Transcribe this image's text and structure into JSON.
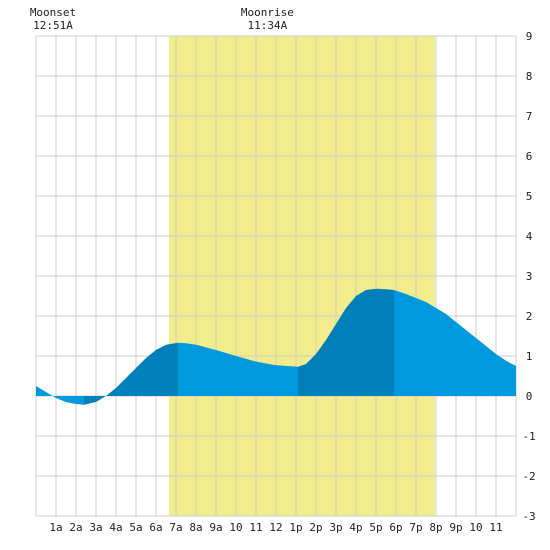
{
  "chart_data": {
    "type": "area",
    "title": "",
    "xlabel": "",
    "ylabel": "",
    "xlim": [
      0,
      24
    ],
    "ylim": [
      -3,
      9
    ],
    "grid": true,
    "x_tick_labels": [
      "1a",
      "2a",
      "3a",
      "4a",
      "5a",
      "6a",
      "7a",
      "8a",
      "9a",
      "10",
      "11",
      "12",
      "1p",
      "2p",
      "3p",
      "4p",
      "5p",
      "6p",
      "7p",
      "8p",
      "9p",
      "10",
      "11"
    ],
    "y_tick_labels": [
      "9",
      "8",
      "7",
      "6",
      "5",
      "4",
      "3",
      "2",
      "1",
      "0",
      "-1",
      "-2",
      "-3"
    ],
    "daylight": {
      "start": 6.65,
      "end": 19.95
    },
    "moon_events": [
      {
        "label": "Moonset",
        "time": "12:51A",
        "hour": 0.85
      },
      {
        "label": "Moonrise",
        "time": "11:34A",
        "hour": 11.57
      }
    ],
    "tide_extremes_hours": [
      2.4,
      7.1,
      13.1,
      17.9
    ],
    "series": [
      {
        "x": [
          0,
          0.5,
          1,
          1.5,
          2,
          2.4,
          3,
          3.5,
          4,
          4.5,
          5,
          5.5,
          6,
          6.5,
          7.1,
          7.5,
          8,
          9,
          10,
          11,
          12,
          13.1,
          13.5,
          14,
          14.5,
          15,
          15.5,
          16,
          16.5,
          17,
          17.5,
          17.9,
          18.5,
          19,
          19.5,
          20,
          20.5,
          21,
          21.5,
          22,
          22.5,
          23,
          23.5,
          24
        ],
        "values": [
          0.25,
          0.1,
          -0.05,
          -0.15,
          -0.2,
          -0.22,
          -0.15,
          0.0,
          0.2,
          0.45,
          0.7,
          0.95,
          1.15,
          1.28,
          1.33,
          1.32,
          1.28,
          1.15,
          1.0,
          0.86,
          0.77,
          0.73,
          0.8,
          1.05,
          1.4,
          1.8,
          2.2,
          2.5,
          2.65,
          2.68,
          2.67,
          2.65,
          2.55,
          2.45,
          2.35,
          2.2,
          2.05,
          1.85,
          1.65,
          1.45,
          1.25,
          1.05,
          0.88,
          0.75
        ]
      }
    ],
    "colors": {
      "daylight": "#f2ec8c",
      "tide_light": "#0099dd",
      "tide_dark": "#0080bb",
      "grid": "#cccccc"
    }
  }
}
